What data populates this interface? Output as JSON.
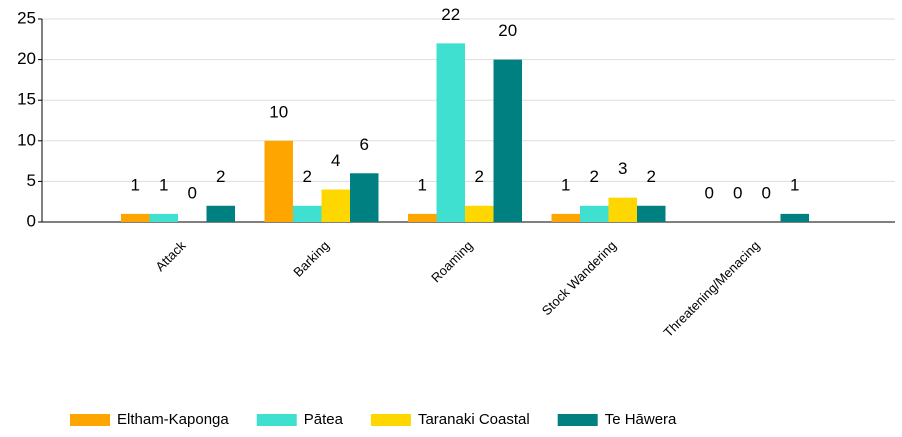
{
  "chart_data": {
    "type": "bar",
    "categories": [
      "Attack",
      "Barking",
      "Roaming",
      "Stock Wandering",
      "Threatening/Menacing"
    ],
    "series": [
      {
        "name": "Eltham-Kaponga",
        "color": "#ffa500",
        "values": [
          1,
          10,
          1,
          1,
          0
        ]
      },
      {
        "name": "Pātea",
        "color": "#40e0d0",
        "values": [
          1,
          2,
          22,
          2,
          0
        ]
      },
      {
        "name": "Taranaki Coastal",
        "color": "#ffd700",
        "values": [
          0,
          4,
          2,
          3,
          0
        ]
      },
      {
        "name": "Te Hāwera",
        "color": "#008080",
        "values": [
          2,
          6,
          20,
          2,
          1
        ]
      }
    ],
    "ylim": [
      0,
      25
    ],
    "yticks": [
      0,
      5,
      10,
      15,
      20,
      25
    ],
    "grid": true,
    "legend": "bottom"
  }
}
